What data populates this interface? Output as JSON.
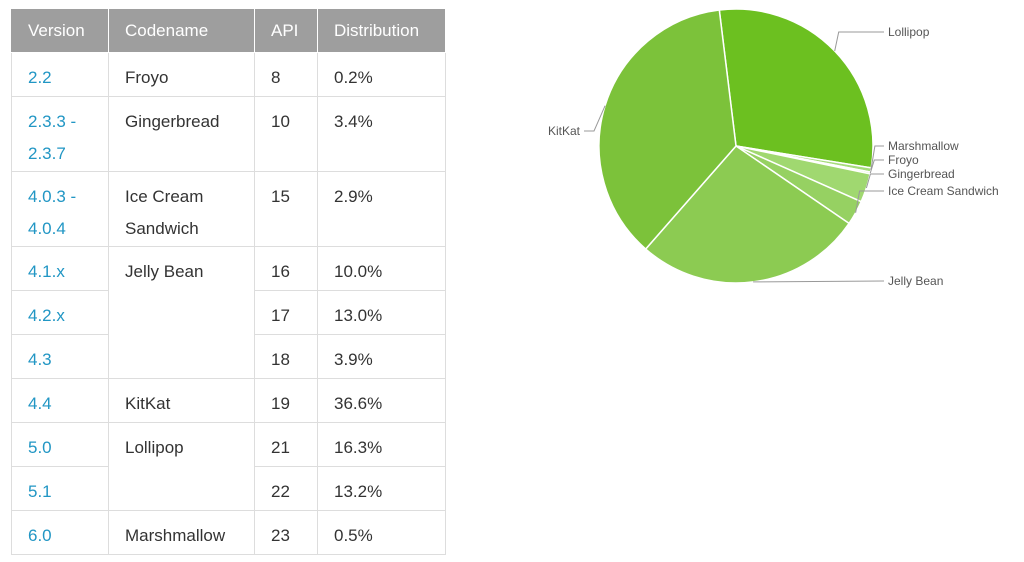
{
  "table": {
    "headers": [
      "Version",
      "Codename",
      "API",
      "Distribution"
    ],
    "rows": [
      {
        "version": "2.2",
        "codename": "Froyo",
        "api": "8",
        "dist": "0.2%"
      },
      {
        "version": "2.3.3 -\n2.3.7",
        "codename": "Gingerbread",
        "api": "10",
        "dist": "3.4%"
      },
      {
        "version": "4.0.3 -\n4.0.4",
        "codename": "Ice Cream\nSandwich",
        "api": "15",
        "dist": "2.9%"
      },
      {
        "version": "4.1.x",
        "codename": "Jelly Bean",
        "api": "16",
        "dist": "10.0%"
      },
      {
        "version": "4.2.x",
        "api": "17",
        "dist": "13.0%"
      },
      {
        "version": "4.3",
        "api": "18",
        "dist": "3.9%"
      },
      {
        "version": "4.4",
        "codename": "KitKat",
        "api": "19",
        "dist": "36.6%"
      },
      {
        "version": "5.0",
        "codename": "Lollipop",
        "api": "21",
        "dist": "16.3%"
      },
      {
        "version": "5.1",
        "api": "22",
        "dist": "13.2%"
      },
      {
        "version": "6.0",
        "codename": "Marshmallow",
        "api": "23",
        "dist": "0.5%"
      }
    ]
  },
  "chart_data": {
    "type": "pie",
    "slices": [
      {
        "label": "Lollipop",
        "value": 29.5,
        "color": "#6cc020"
      },
      {
        "label": "Marshmallow",
        "value": 0.5,
        "color": "#a5dc7a"
      },
      {
        "label": "Froyo",
        "value": 0.2,
        "color": "#a5dc7a"
      },
      {
        "label": "Gingerbread",
        "value": 3.4,
        "color": "#a0d870"
      },
      {
        "label": "Ice Cream Sandwich",
        "value": 2.9,
        "color": "#96d162"
      },
      {
        "label": "Jelly Bean",
        "value": 26.9,
        "color": "#8ccb52"
      },
      {
        "label": "KitKat",
        "value": 36.6,
        "color": "#7cc23a"
      }
    ]
  }
}
